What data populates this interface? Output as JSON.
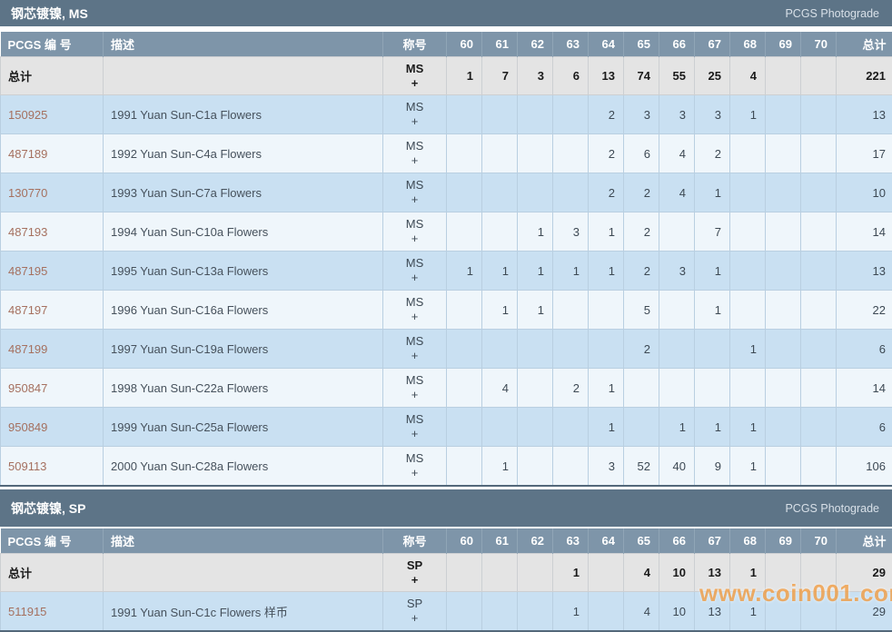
{
  "labels": {
    "pcgs_number_header": "PCGS 编 号",
    "description_header": "描述",
    "designation_header": "称号",
    "total_column_header": "总计",
    "total_row_label": "总计",
    "brand_link": "PCGS Photograde",
    "plus": "+"
  },
  "grade_headers": [
    "60",
    "61",
    "62",
    "63",
    "64",
    "65",
    "66",
    "67",
    "68",
    "69",
    "70"
  ],
  "watermark": "www.coin001.com",
  "colors": {
    "section_bar": "#5d7487",
    "column_header_bg": "#7e95a9",
    "total_row_bg": "#e4e4e4",
    "row_blue": "#c9e0f2",
    "row_light": "#eff6fb",
    "link": "#a5705f",
    "watermark": "#f39c3f"
  },
  "sections": [
    {
      "title": "钢芯镀镍, MS",
      "designation": "MS",
      "total_row": {
        "values": [
          "1",
          "7",
          "3",
          "6",
          "13",
          "74",
          "55",
          "25",
          "4",
          "",
          "",
          "221"
        ]
      },
      "rows": [
        {
          "pcgs": "150925",
          "desc": "1991 Yuan Sun-C1a Flowers",
          "values": [
            "",
            "",
            "",
            "",
            "2",
            "3",
            "3",
            "3",
            "1",
            "",
            "",
            "13"
          ]
        },
        {
          "pcgs": "487189",
          "desc": "1992 Yuan Sun-C4a Flowers",
          "values": [
            "",
            "",
            "",
            "",
            "2",
            "6",
            "4",
            "2",
            "",
            "",
            "",
            "17"
          ]
        },
        {
          "pcgs": "130770",
          "desc": "1993 Yuan Sun-C7a Flowers",
          "values": [
            "",
            "",
            "",
            "",
            "2",
            "2",
            "4",
            "1",
            "",
            "",
            "",
            "10"
          ]
        },
        {
          "pcgs": "487193",
          "desc": "1994 Yuan Sun-C10a Flowers",
          "values": [
            "",
            "",
            "1",
            "3",
            "1",
            "2",
            "",
            "7",
            "",
            "",
            "",
            "14"
          ]
        },
        {
          "pcgs": "487195",
          "desc": "1995 Yuan Sun-C13a Flowers",
          "values": [
            "1",
            "1",
            "1",
            "1",
            "1",
            "2",
            "3",
            "1",
            "",
            "",
            "",
            "13"
          ]
        },
        {
          "pcgs": "487197",
          "desc": "1996 Yuan Sun-C16a Flowers",
          "values": [
            "",
            "1",
            "1",
            "",
            "",
            "5",
            "",
            "1",
            "",
            "",
            "",
            "22"
          ]
        },
        {
          "pcgs": "487199",
          "desc": "1997 Yuan Sun-C19a Flowers",
          "values": [
            "",
            "",
            "",
            "",
            "",
            "2",
            "",
            "",
            "1",
            "",
            "",
            "6"
          ]
        },
        {
          "pcgs": "950847",
          "desc": "1998 Yuan Sun-C22a Flowers",
          "values": [
            "",
            "4",
            "",
            "2",
            "1",
            "",
            "",
            "",
            "",
            "",
            "",
            "14"
          ]
        },
        {
          "pcgs": "950849",
          "desc": "1999 Yuan Sun-C25a Flowers",
          "values": [
            "",
            "",
            "",
            "",
            "1",
            "",
            "1",
            "1",
            "1",
            "",
            "",
            "6"
          ]
        },
        {
          "pcgs": "509113",
          "desc": "2000 Yuan Sun-C28a Flowers",
          "values": [
            "",
            "1",
            "",
            "",
            "3",
            "52",
            "40",
            "9",
            "1",
            "",
            "",
            "106"
          ]
        }
      ]
    },
    {
      "title": "钢芯镀镍, SP",
      "designation": "SP",
      "total_row": {
        "values": [
          "",
          "",
          "",
          "1",
          "",
          "4",
          "10",
          "13",
          "1",
          "",
          "",
          "29"
        ]
      },
      "rows": [
        {
          "pcgs": "511915",
          "desc": "1991 Yuan Sun-C1c Flowers 样币",
          "values": [
            "",
            "",
            "",
            "1",
            "",
            "4",
            "10",
            "13",
            "1",
            "",
            "",
            "29"
          ]
        }
      ]
    }
  ]
}
